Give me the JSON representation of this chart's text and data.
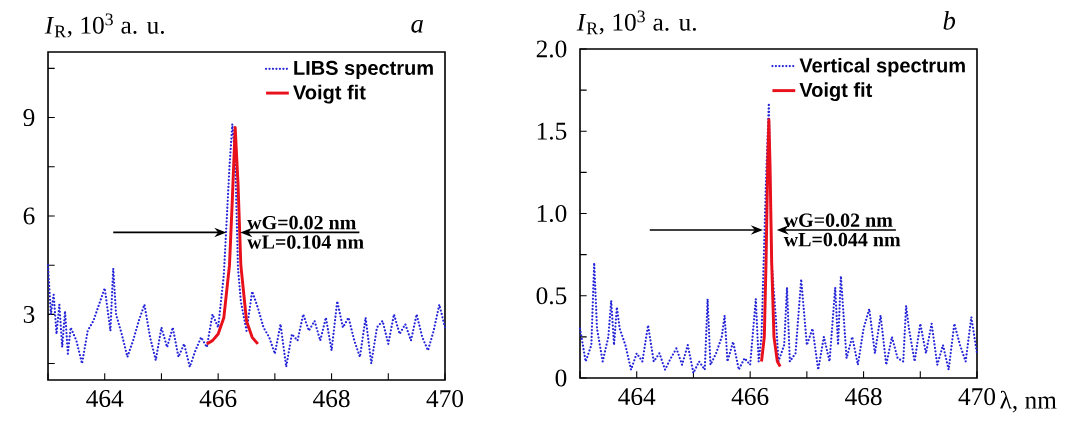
{
  "chart_data": [
    {
      "type": "line",
      "title": "a",
      "ylabel": "*I*$_{R}$, 10$^{3}$  a. u.",
      "xlim": [
        463,
        470
      ],
      "ylim": [
        1,
        11
      ],
      "xticks": [
        {
          "value": 463,
          "label": null
        },
        464,
        {
          "value": 465,
          "label": null
        },
        466,
        {
          "value": 467,
          "label": null
        },
        468,
        {
          "value": 469,
          "label": null
        },
        470
      ],
      "yticks": [
        {
          "value": 1.5,
          "label": null
        },
        3,
        {
          "value": 4.5,
          "label": null
        },
        6,
        {
          "value": 7.5,
          "label": null
        },
        9,
        {
          "value": 10.5,
          "label": null
        }
      ],
      "legend": "top right",
      "annotations": [
        "wG=0.02 nm",
        "wL=0.104 nm"
      ],
      "series": [
        {
          "name": "LIBS spectrum",
          "color": "#2424d8",
          "line_style": "dotted",
          "x": [
            463.0,
            463.05,
            463.1,
            463.15,
            463.2,
            463.25,
            463.3,
            463.35,
            463.4,
            463.5,
            463.6,
            463.7,
            463.8,
            463.9,
            464.0,
            464.1,
            464.15,
            464.2,
            464.3,
            464.4,
            464.5,
            464.6,
            464.7,
            464.8,
            464.9,
            465.0,
            465.1,
            465.2,
            465.3,
            465.4,
            465.5,
            465.6,
            465.7,
            465.8,
            465.9,
            466.0,
            466.1,
            466.2,
            466.25,
            466.3,
            466.35,
            466.4,
            466.5,
            466.6,
            466.7,
            466.8,
            466.9,
            467.0,
            467.1,
            467.2,
            467.3,
            467.4,
            467.5,
            467.6,
            467.7,
            467.8,
            467.9,
            468.0,
            468.1,
            468.2,
            468.3,
            468.4,
            468.5,
            468.6,
            468.7,
            468.8,
            468.9,
            469.0,
            469.1,
            469.2,
            469.3,
            469.4,
            469.5,
            469.6,
            469.7,
            469.8,
            469.9,
            470.0
          ],
          "values": [
            4.5,
            3.0,
            3.6,
            2.4,
            3.3,
            2.0,
            3.1,
            1.8,
            2.6,
            2.2,
            1.5,
            2.5,
            2.8,
            3.3,
            3.8,
            2.5,
            4.4,
            3.0,
            2.4,
            1.7,
            2.2,
            2.8,
            3.3,
            2.3,
            1.6,
            2.6,
            2.0,
            2.6,
            1.7,
            2.1,
            1.4,
            1.9,
            2.3,
            2.0,
            3.0,
            2.6,
            4.2,
            7.5,
            8.8,
            7.8,
            4.4,
            3.4,
            2.5,
            3.7,
            3.2,
            2.6,
            2.3,
            1.8,
            2.7,
            1.4,
            2.4,
            2.2,
            3.0,
            2.5,
            2.8,
            2.2,
            2.9,
            1.9,
            3.4,
            2.6,
            2.9,
            2.2,
            1.7,
            2.9,
            1.5,
            2.6,
            2.8,
            2.1,
            3.0,
            2.4,
            2.7,
            2.2,
            3.0,
            2.3,
            1.9,
            2.5,
            3.3,
            2.6
          ]
        },
        {
          "name": "Voigt fit",
          "color": "#e8101a",
          "line_style": "solid",
          "x": [
            465.8,
            465.9,
            466.0,
            466.1,
            466.2,
            466.25,
            466.3,
            466.35,
            466.4,
            466.5,
            466.6,
            466.7
          ],
          "values": [
            2.1,
            2.2,
            2.4,
            2.9,
            4.5,
            6.5,
            8.7,
            7.0,
            4.5,
            2.8,
            2.3,
            2.1
          ]
        }
      ]
    },
    {
      "type": "line",
      "title": "b",
      "ylabel": "*I*$_{R}$, 10$^{3}$ a. u.",
      "xlabel": "λ, nm",
      "xlim": [
        463,
        470
      ],
      "ylim": [
        0,
        2
      ],
      "xticks": [
        {
          "value": 463,
          "label": null
        },
        464,
        {
          "value": 465,
          "label": null
        },
        466,
        {
          "value": 467,
          "label": null
        },
        468,
        {
          "value": 469,
          "label": null
        },
        470
      ],
      "yticks": [
        0,
        {
          "value": 0.25,
          "label": null
        },
        0.5,
        {
          "value": 0.75,
          "label": null
        },
        {
          "value": 1,
          "label": "1.0"
        },
        {
          "value": 1.25,
          "label": null
        },
        1.5,
        {
          "value": 1.75,
          "label": null
        },
        {
          "value": 2,
          "label": "2.0"
        }
      ],
      "legend": "top right",
      "annotations": [
        "wG=0.02 nm",
        "wL=0.044 nm"
      ],
      "series": [
        {
          "name": "Vertical spectrum",
          "color": "#2424d8",
          "line_style": "dotted",
          "x": [
            463.0,
            463.1,
            463.2,
            463.25,
            463.3,
            463.4,
            463.5,
            463.55,
            463.6,
            463.65,
            463.7,
            463.8,
            463.9,
            464.0,
            464.1,
            464.2,
            464.3,
            464.4,
            464.5,
            464.6,
            464.7,
            464.8,
            464.9,
            465.0,
            465.1,
            465.2,
            465.25,
            465.3,
            465.4,
            465.5,
            465.55,
            465.6,
            465.7,
            465.8,
            465.9,
            466.0,
            466.1,
            466.15,
            466.2,
            466.28,
            466.33,
            466.38,
            466.45,
            466.5,
            466.6,
            466.65,
            466.7,
            466.8,
            466.9,
            467.0,
            467.1,
            467.2,
            467.3,
            467.4,
            467.5,
            467.55,
            467.6,
            467.7,
            467.8,
            467.9,
            468.0,
            468.1,
            468.2,
            468.3,
            468.4,
            468.5,
            468.6,
            468.7,
            468.75,
            468.8,
            468.9,
            469.0,
            469.1,
            469.2,
            469.3,
            469.4,
            469.5,
            469.6,
            469.7,
            469.8,
            469.9,
            470.0
          ],
          "values": [
            0.3,
            0.1,
            0.2,
            0.7,
            0.3,
            0.1,
            0.25,
            0.47,
            0.2,
            0.43,
            0.3,
            0.2,
            0.05,
            0.15,
            0.1,
            0.32,
            0.1,
            0.15,
            0.05,
            0.12,
            0.18,
            0.08,
            0.2,
            0.03,
            0.1,
            0.05,
            0.48,
            0.08,
            0.15,
            0.25,
            0.38,
            0.1,
            0.22,
            0.05,
            0.12,
            0.08,
            0.48,
            0.1,
            0.25,
            1.2,
            1.67,
            0.7,
            0.38,
            0.1,
            0.2,
            0.55,
            0.1,
            0.15,
            0.6,
            0.2,
            0.3,
            0.05,
            0.25,
            0.1,
            0.55,
            0.2,
            0.62,
            0.12,
            0.25,
            0.08,
            0.3,
            0.42,
            0.15,
            0.38,
            0.08,
            0.25,
            0.12,
            0.1,
            0.44,
            0.3,
            0.1,
            0.33,
            0.15,
            0.33,
            0.08,
            0.2,
            0.05,
            0.33,
            0.2,
            0.1,
            0.37,
            0.15
          ]
        },
        {
          "name": "Voigt fit",
          "color": "#e8101a",
          "line_style": "solid",
          "x": [
            466.2,
            466.25,
            466.28,
            466.31,
            466.33,
            466.35,
            466.38,
            466.42,
            466.48,
            466.53
          ],
          "values": [
            0.1,
            0.25,
            0.7,
            1.3,
            1.57,
            1.3,
            0.7,
            0.25,
            0.1,
            0.07
          ]
        }
      ]
    }
  ]
}
